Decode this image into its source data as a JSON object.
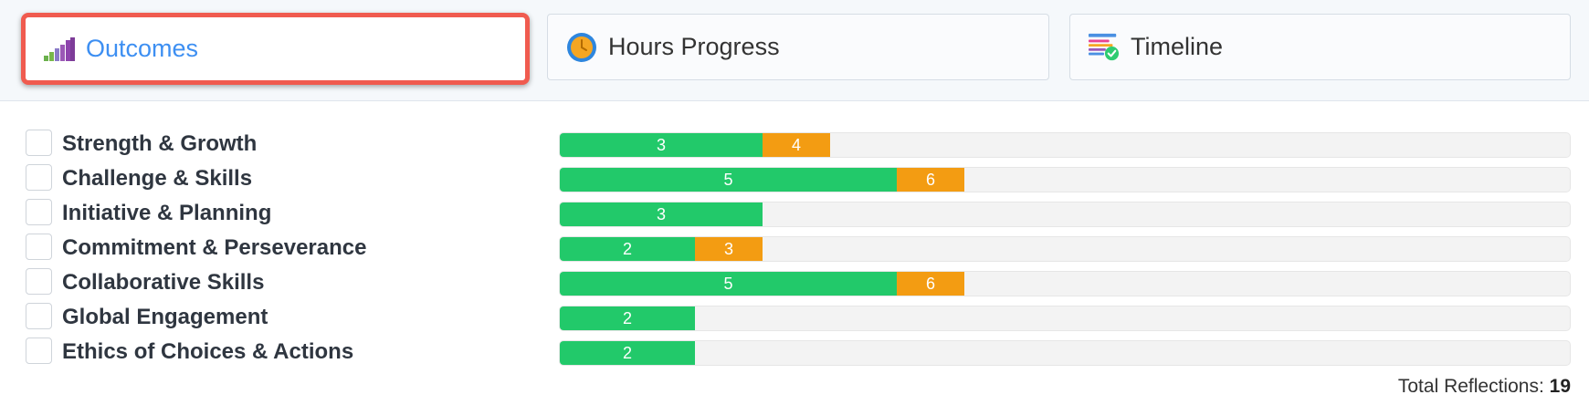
{
  "tabs": {
    "outcomes": {
      "label": "Outcomes",
      "icon": "bar-chart-icon"
    },
    "hours": {
      "label": "Hours Progress",
      "icon": "clock-icon"
    },
    "timeline": {
      "label": "Timeline",
      "icon": "timeline-check-icon"
    }
  },
  "colors": {
    "green": "#22c96a",
    "orange": "#f39c12",
    "active_border": "#f05b4f",
    "active_text": "#3d8ff2"
  },
  "scale_max": 30,
  "outcomes": [
    {
      "label": "Strength & Growth",
      "green": 3,
      "orange": 4,
      "green_label": "3",
      "orange_label": "4",
      "green_width": 6,
      "orange_width": 2
    },
    {
      "label": "Challenge & Skills",
      "green": 5,
      "orange": 6,
      "green_label": "5",
      "orange_label": "6",
      "green_width": 10,
      "orange_width": 2
    },
    {
      "label": "Initiative & Planning",
      "green": 3,
      "orange": null,
      "green_label": "3",
      "orange_label": "",
      "green_width": 6,
      "orange_width": 0
    },
    {
      "label": "Commitment & Perseverance",
      "green": 2,
      "orange": 3,
      "green_label": "2",
      "orange_label": "3",
      "green_width": 4,
      "orange_width": 2
    },
    {
      "label": "Collaborative Skills",
      "green": 5,
      "orange": 6,
      "green_label": "5",
      "orange_label": "6",
      "green_width": 10,
      "orange_width": 2
    },
    {
      "label": "Global Engagement",
      "green": 2,
      "orange": null,
      "green_label": "2",
      "orange_label": "",
      "green_width": 4,
      "orange_width": 0
    },
    {
      "label": "Ethics of Choices & Actions",
      "green": 2,
      "orange": null,
      "green_label": "2",
      "orange_label": "",
      "green_width": 4,
      "orange_width": 0
    }
  ],
  "total": {
    "label": "Total Reflections:",
    "value": "19"
  }
}
